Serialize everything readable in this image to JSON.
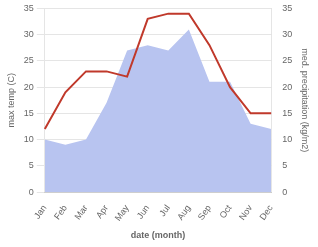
{
  "chart_data": {
    "type": "line",
    "xlabel": "date (month)",
    "ylabel": "max temp (C)",
    "y2label": "med. precipitation (kg/m2)",
    "categories": [
      "Jan",
      "Feb",
      "Mar",
      "Apr",
      "May",
      "Jun",
      "Jul",
      "Aug",
      "Sep",
      "Oct",
      "Nov",
      "Dec"
    ],
    "series": [
      {
        "type": "area",
        "color": "#b8c4f0",
        "values": [
          10,
          9,
          10,
          17,
          27,
          28,
          27,
          31,
          21,
          21,
          13,
          12
        ]
      },
      {
        "type": "line",
        "color": "#c0392b",
        "axis": "y2",
        "values": [
          12,
          19,
          23,
          23,
          22,
          33,
          34,
          34,
          28,
          20,
          15,
          15
        ]
      }
    ],
    "ylim": [
      0,
      35
    ],
    "yticks": [
      0,
      5,
      10,
      15,
      20,
      25,
      30,
      35
    ],
    "y2lim": [
      0,
      35
    ],
    "y2ticks": [
      0,
      5,
      10,
      15,
      20,
      25,
      30,
      35
    ],
    "grid": "y"
  }
}
